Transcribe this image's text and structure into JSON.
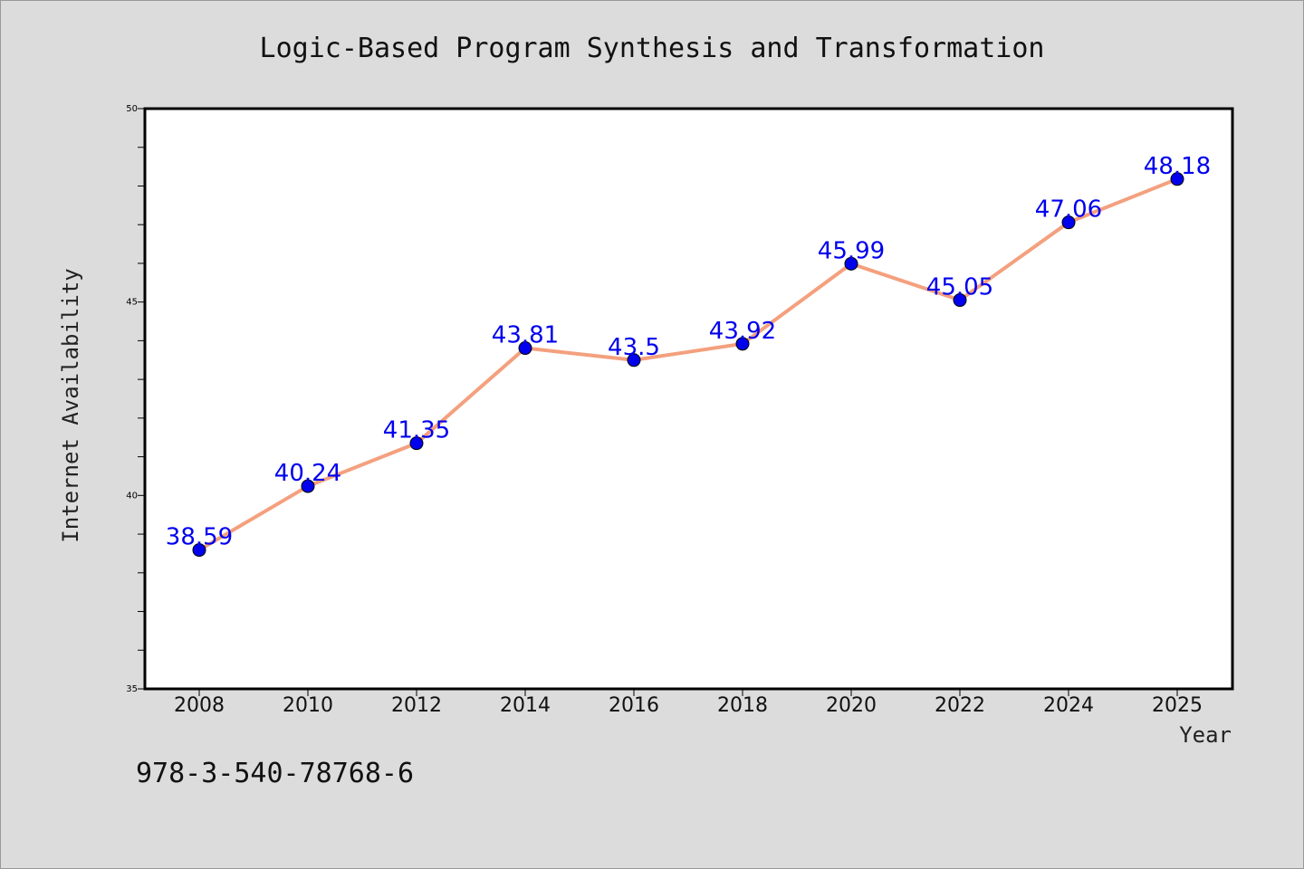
{
  "chart_data": {
    "type": "line",
    "title": "Logic-Based Program Synthesis and Transformation",
    "xlabel": "Year",
    "ylabel": "Internet Availability",
    "x": [
      "2008",
      "2010",
      "2012",
      "2014",
      "2016",
      "2018",
      "2020",
      "2022",
      "2024",
      "2025"
    ],
    "series": [
      {
        "values": [
          38.59,
          40.24,
          41.35,
          43.81,
          43.5,
          43.92,
          45.99,
          45.05,
          47.06,
          48.18
        ],
        "data_labels": [
          "38.59",
          "40.24",
          "41.35",
          "43.81",
          "43.5",
          "43.92",
          "45.99",
          "45.05",
          "47.06",
          "48.18"
        ]
      }
    ],
    "ylim": [
      35,
      50
    ],
    "yticks": [
      "35",
      "40",
      "45",
      "50"
    ],
    "grid": false,
    "legend": "none",
    "annotation": "978-3-540-78768-6",
    "colors": {
      "line": "#f4a07e",
      "marker": "#0000ee",
      "label": "#0000ee",
      "background": "#dcdcdc",
      "plot": "#ffffff"
    }
  }
}
